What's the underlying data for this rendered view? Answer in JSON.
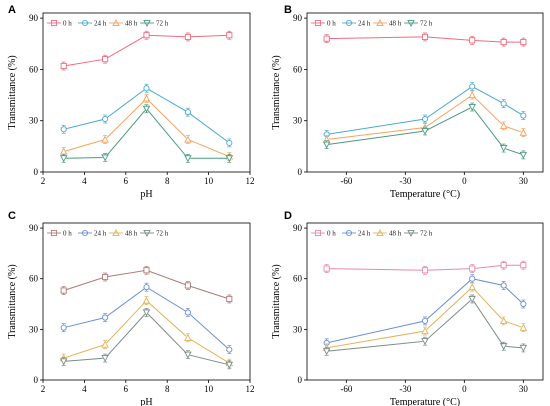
{
  "chart_data": [
    {
      "panel": "A",
      "type": "line",
      "xlabel": "pH",
      "ylabel": "Transmittance (%)",
      "xlim": [
        2,
        12
      ],
      "ylim": [
        0,
        93
      ],
      "xticks": [
        2,
        4,
        6,
        8,
        10,
        12
      ],
      "yticks": [
        0,
        30,
        60,
        90
      ],
      "x": [
        3,
        5,
        7,
        9,
        11
      ],
      "legend": "top, horizontal",
      "series": [
        {
          "name": "0 h",
          "color": "#f06b7f",
          "marker": "square",
          "values": [
            62,
            66,
            80,
            79,
            80
          ]
        },
        {
          "name": "24 h",
          "color": "#4aa9d4",
          "marker": "circle",
          "values": [
            25,
            31,
            49,
            35,
            17
          ]
        },
        {
          "name": "48 h",
          "color": "#f7a25e",
          "marker": "triangle-up",
          "values": [
            12,
            19,
            43,
            19,
            9
          ]
        },
        {
          "name": "72 h",
          "color": "#4a9a7e",
          "marker": "triangle-down",
          "values": [
            8,
            8.5,
            37,
            8,
            8
          ]
        }
      ]
    },
    {
      "panel": "B",
      "type": "line",
      "xlabel": "Temperature (°C)",
      "ylabel": "Transmittance (%)",
      "xlim": [
        -80,
        40
      ],
      "ylim": [
        0,
        93
      ],
      "xticks": [
        -60,
        -30,
        0,
        30
      ],
      "yticks": [
        0,
        30,
        60,
        90
      ],
      "x": [
        -70,
        -20,
        4,
        20,
        30
      ],
      "legend": "top, horizontal",
      "series": [
        {
          "name": "0 h",
          "color": "#f06b7f",
          "marker": "square",
          "values": [
            78,
            79,
            77,
            76,
            76
          ]
        },
        {
          "name": "24 h",
          "color": "#4aa9d4",
          "marker": "circle",
          "values": [
            22,
            31,
            50,
            40,
            33
          ]
        },
        {
          "name": "48 h",
          "color": "#f7a25e",
          "marker": "triangle-up",
          "values": [
            19,
            26,
            45,
            27,
            23
          ]
        },
        {
          "name": "72 h",
          "color": "#4a9a7e",
          "marker": "triangle-down",
          "values": [
            16,
            24,
            38,
            14,
            10
          ]
        }
      ]
    },
    {
      "panel": "C",
      "type": "line",
      "xlabel": "pH",
      "ylabel": "Transmittance (%)",
      "xlim": [
        2,
        12
      ],
      "ylim": [
        0,
        93
      ],
      "xticks": [
        2,
        4,
        6,
        8,
        10,
        12
      ],
      "yticks": [
        0,
        30,
        60,
        90
      ],
      "x": [
        3,
        5,
        7,
        9,
        11
      ],
      "legend": "top, horizontal",
      "series": [
        {
          "name": "0 h",
          "color": "#b07a78",
          "marker": "square",
          "values": [
            53,
            61,
            65,
            56,
            48
          ]
        },
        {
          "name": "24 h",
          "color": "#6a8fd6",
          "marker": "circle",
          "values": [
            31,
            37,
            55,
            40,
            18
          ]
        },
        {
          "name": "48 h",
          "color": "#e0b35a",
          "marker": "triangle-up",
          "values": [
            13,
            21,
            47,
            25,
            10
          ]
        },
        {
          "name": "72 h",
          "color": "#7a8a8a",
          "marker": "triangle-down",
          "values": [
            11,
            13,
            40,
            15,
            9
          ]
        }
      ]
    },
    {
      "panel": "D",
      "type": "line",
      "xlabel": "Temperature (°C)",
      "ylabel": "Transmittance (%)",
      "xlim": [
        -80,
        40
      ],
      "ylim": [
        0,
        93
      ],
      "xticks": [
        -60,
        -30,
        0,
        30
      ],
      "yticks": [
        0,
        30,
        60,
        90
      ],
      "x": [
        -70,
        -20,
        4,
        20,
        30
      ],
      "legend": "top, horizontal",
      "series": [
        {
          "name": "0 h",
          "color": "#e58aa8",
          "marker": "square",
          "values": [
            66,
            65,
            66,
            68,
            68
          ]
        },
        {
          "name": "24 h",
          "color": "#6a8fd6",
          "marker": "circle",
          "values": [
            22,
            35,
            60,
            56,
            45
          ]
        },
        {
          "name": "48 h",
          "color": "#e0b35a",
          "marker": "triangle-up",
          "values": [
            19,
            29,
            55,
            35,
            31
          ]
        },
        {
          "name": "72 h",
          "color": "#7a8a8a",
          "marker": "triangle-down",
          "values": [
            17,
            23,
            48,
            20,
            19
          ]
        }
      ]
    }
  ]
}
